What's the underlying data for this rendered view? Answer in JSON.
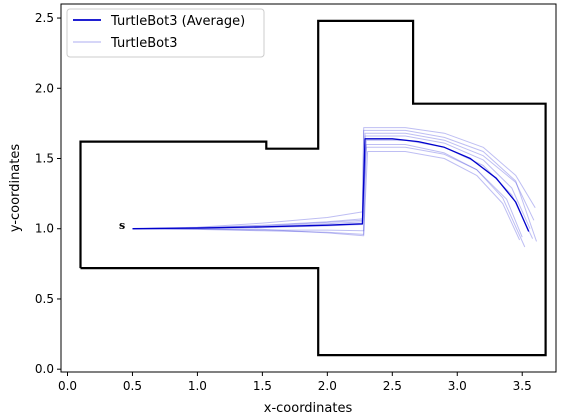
{
  "chart_data": {
    "type": "line",
    "title": "",
    "xlabel": "x-coordinates",
    "ylabel": "y-coordinates",
    "xlim": [
      -0.05,
      3.76
    ],
    "ylim": [
      -0.02,
      2.6
    ],
    "xticks": [
      0.0,
      0.5,
      1.0,
      1.5,
      2.0,
      2.5,
      3.0,
      3.5
    ],
    "xtick_labels": [
      "0.0",
      "0.5",
      "1.0",
      "1.5",
      "2.0",
      "2.5",
      "3.0",
      "3.5"
    ],
    "yticks": [
      0.0,
      0.5,
      1.0,
      1.5,
      2.0,
      2.5
    ],
    "ytick_labels": [
      "0.0",
      "0.5",
      "1.0",
      "1.5",
      "2.0",
      "2.5"
    ],
    "grid": false,
    "legend_position": "top-left",
    "annotation": {
      "text": "s",
      "x": 0.42,
      "y": 1.02
    },
    "boundary": {
      "color": "#000000",
      "points": [
        [
          0.1,
          0.72
        ],
        [
          0.1,
          1.62
        ],
        [
          1.53,
          1.62
        ],
        [
          1.53,
          1.57
        ],
        [
          1.93,
          1.57
        ],
        [
          1.93,
          2.48
        ],
        [
          2.66,
          2.48
        ],
        [
          2.66,
          1.89
        ],
        [
          3.68,
          1.89
        ],
        [
          3.68,
          0.1
        ],
        [
          1.93,
          0.1
        ],
        [
          1.93,
          0.72
        ],
        [
          0.1,
          0.72
        ]
      ]
    },
    "series": [
      {
        "name": "TurtleBot3 (Average)",
        "color": "#0000cc",
        "alpha": 1.0,
        "width": 1.3,
        "lines": [
          [
            [
              0.5,
              1.0
            ],
            [
              1.0,
              1.005
            ],
            [
              1.5,
              1.013
            ],
            [
              2.0,
              1.025
            ],
            [
              2.27,
              1.035
            ],
            [
              2.29,
              1.64
            ],
            [
              2.5,
              1.64
            ],
            [
              2.7,
              1.62
            ],
            [
              2.9,
              1.58
            ],
            [
              3.1,
              1.5
            ],
            [
              3.3,
              1.36
            ],
            [
              3.45,
              1.19
            ],
            [
              3.55,
              0.98
            ]
          ]
        ]
      },
      {
        "name": "TurtleBot3",
        "color": "#4444dd",
        "alpha": 0.35,
        "width": 1.0,
        "lines": [
          [
            [
              0.5,
              1.0
            ],
            [
              1.0,
              1.01
            ],
            [
              1.5,
              1.04
            ],
            [
              2.0,
              1.08
            ],
            [
              2.27,
              1.12
            ],
            [
              2.28,
              1.72
            ],
            [
              2.6,
              1.72
            ],
            [
              2.9,
              1.68
            ],
            [
              3.2,
              1.58
            ],
            [
              3.45,
              1.38
            ],
            [
              3.6,
              1.15
            ]
          ],
          [
            [
              0.5,
              1.0
            ],
            [
              1.0,
              1.0
            ],
            [
              1.5,
              0.995
            ],
            [
              2.0,
              0.97
            ],
            [
              2.28,
              0.95
            ],
            [
              2.29,
              1.68
            ],
            [
              2.6,
              1.68
            ],
            [
              2.9,
              1.63
            ],
            [
              3.2,
              1.52
            ],
            [
              3.45,
              1.33
            ],
            [
              3.59,
              1.06
            ]
          ],
          [
            [
              0.5,
              1.0
            ],
            [
              1.0,
              1.008
            ],
            [
              1.5,
              1.025
            ],
            [
              2.0,
              1.05
            ],
            [
              2.27,
              1.07
            ],
            [
              2.3,
              1.6
            ],
            [
              2.6,
              1.6
            ],
            [
              2.9,
              1.54
            ],
            [
              3.15,
              1.42
            ],
            [
              3.35,
              1.22
            ],
            [
              3.52,
              0.87
            ]
          ],
          [
            [
              0.5,
              1.0
            ],
            [
              1.0,
              0.995
            ],
            [
              1.5,
              0.985
            ],
            [
              2.0,
              0.975
            ],
            [
              2.28,
              0.96
            ],
            [
              2.31,
              1.55
            ],
            [
              2.6,
              1.55
            ],
            [
              2.9,
              1.5
            ],
            [
              3.15,
              1.38
            ],
            [
              3.35,
              1.18
            ],
            [
              3.48,
              0.92
            ]
          ],
          [
            [
              0.5,
              1.0
            ],
            [
              1.0,
              1.004
            ],
            [
              1.5,
              1.015
            ],
            [
              2.0,
              1.035
            ],
            [
              2.27,
              1.05
            ],
            [
              2.29,
              1.66
            ],
            [
              2.6,
              1.66
            ],
            [
              2.9,
              1.61
            ],
            [
              3.2,
              1.49
            ],
            [
              3.42,
              1.29
            ],
            [
              3.56,
              1.0
            ]
          ],
          [
            [
              0.5,
              1.0
            ],
            [
              1.0,
              1.002
            ],
            [
              1.5,
              1.008
            ],
            [
              2.0,
              1.02
            ],
            [
              2.27,
              1.03
            ],
            [
              2.3,
              1.63
            ],
            [
              2.6,
              1.63
            ],
            [
              2.9,
              1.58
            ],
            [
              3.2,
              1.45
            ],
            [
              3.42,
              1.24
            ],
            [
              3.58,
              0.93
            ]
          ],
          [
            [
              0.5,
              1.0
            ],
            [
              1.0,
              1.006
            ],
            [
              1.5,
              1.02
            ],
            [
              2.0,
              1.045
            ],
            [
              2.27,
              1.06
            ],
            [
              2.28,
              1.7
            ],
            [
              2.6,
              1.7
            ],
            [
              2.9,
              1.65
            ],
            [
              3.2,
              1.55
            ],
            [
              3.45,
              1.34
            ],
            [
              3.61,
              0.91
            ]
          ],
          [
            [
              0.5,
              1.0
            ],
            [
              1.0,
              0.998
            ],
            [
              1.5,
              0.99
            ],
            [
              2.0,
              0.99
            ],
            [
              2.28,
              0.985
            ],
            [
              2.3,
              1.58
            ],
            [
              2.6,
              1.58
            ],
            [
              2.9,
              1.53
            ],
            [
              3.15,
              1.42
            ],
            [
              3.38,
              1.21
            ],
            [
              3.5,
              0.94
            ]
          ]
        ]
      }
    ]
  }
}
